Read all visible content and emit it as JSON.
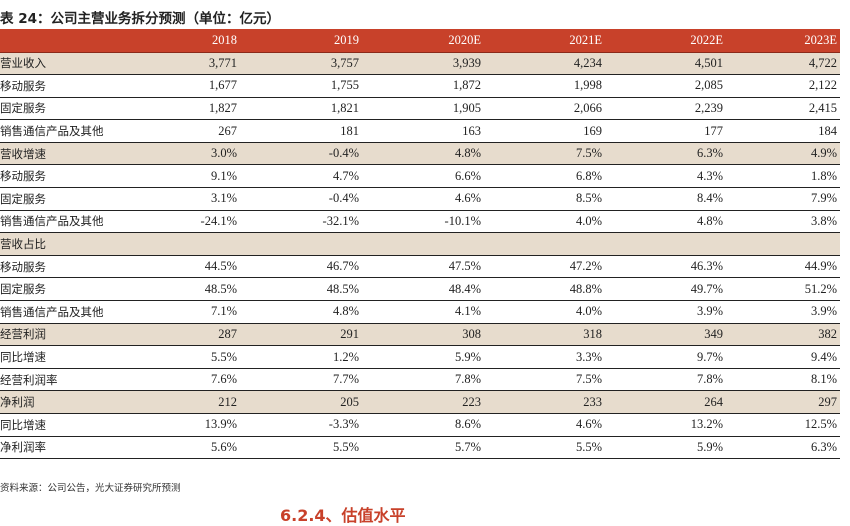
{
  "title": "表 24：公司主营业务拆分预测（单位：亿元）",
  "columns": [
    "2018",
    "2019",
    "2020E",
    "2021E",
    "2022E",
    "2023E"
  ],
  "rows": [
    {
      "label": "营业收入",
      "section": true,
      "values": [
        "3,771",
        "3,757",
        "3,939",
        "4,234",
        "4,501",
        "4,722"
      ]
    },
    {
      "label": "移动服务",
      "section": false,
      "values": [
        "1,677",
        "1,755",
        "1,872",
        "1,998",
        "2,085",
        "2,122"
      ]
    },
    {
      "label": "固定服务",
      "section": false,
      "values": [
        "1,827",
        "1,821",
        "1,905",
        "2,066",
        "2,239",
        "2,415"
      ]
    },
    {
      "label": "销售通信产品及其他",
      "section": false,
      "values": [
        "267",
        "181",
        "163",
        "169",
        "177",
        "184"
      ]
    },
    {
      "label": "营收增速",
      "section": true,
      "values": [
        "3.0%",
        "-0.4%",
        "4.8%",
        "7.5%",
        "6.3%",
        "4.9%"
      ]
    },
    {
      "label": "移动服务",
      "section": false,
      "values": [
        "9.1%",
        "4.7%",
        "6.6%",
        "6.8%",
        "4.3%",
        "1.8%"
      ]
    },
    {
      "label": "固定服务",
      "section": false,
      "values": [
        "3.1%",
        "-0.4%",
        "4.6%",
        "8.5%",
        "8.4%",
        "7.9%"
      ]
    },
    {
      "label": "销售通信产品及其他",
      "section": false,
      "values": [
        "-24.1%",
        "-32.1%",
        "-10.1%",
        "4.0%",
        "4.8%",
        "3.8%"
      ]
    },
    {
      "label": "营收占比",
      "section": true,
      "values": [
        "",
        "",
        "",
        "",
        "",
        ""
      ]
    },
    {
      "label": "移动服务",
      "section": false,
      "values": [
        "44.5%",
        "46.7%",
        "47.5%",
        "47.2%",
        "46.3%",
        "44.9%"
      ]
    },
    {
      "label": "固定服务",
      "section": false,
      "values": [
        "48.5%",
        "48.5%",
        "48.4%",
        "48.8%",
        "49.7%",
        "51.2%"
      ]
    },
    {
      "label": "销售通信产品及其他",
      "section": false,
      "values": [
        "7.1%",
        "4.8%",
        "4.1%",
        "4.0%",
        "3.9%",
        "3.9%"
      ]
    },
    {
      "label": "经营利润",
      "section": true,
      "values": [
        "287",
        "291",
        "308",
        "318",
        "349",
        "382"
      ]
    },
    {
      "label": "同比增速",
      "section": false,
      "values": [
        "5.5%",
        "1.2%",
        "5.9%",
        "3.3%",
        "9.7%",
        "9.4%"
      ]
    },
    {
      "label": "经营利润率",
      "section": false,
      "values": [
        "7.6%",
        "7.7%",
        "7.8%",
        "7.5%",
        "7.8%",
        "8.1%"
      ]
    },
    {
      "label": "净利润",
      "section": true,
      "values": [
        "212",
        "205",
        "223",
        "233",
        "264",
        "297"
      ]
    },
    {
      "label": "同比增速",
      "section": false,
      "values": [
        "13.9%",
        "-3.3%",
        "8.6%",
        "4.6%",
        "13.2%",
        "12.5%"
      ]
    },
    {
      "label": "净利润率",
      "section": false,
      "values": [
        "5.6%",
        "5.5%",
        "5.7%",
        "5.5%",
        "5.9%",
        "6.3%"
      ]
    }
  ],
  "source": "资料来源：公司公告，光大证券研究所预测",
  "next_heading": "6.2.4、估值水平",
  "colors": {
    "header_bg": "#c8412a",
    "section_bg": "#e7dccd",
    "accent": "#c8412a"
  }
}
